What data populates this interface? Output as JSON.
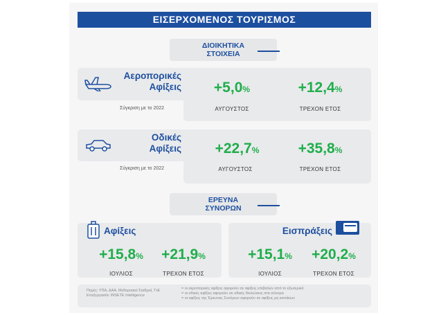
{
  "header": {
    "title": "ΕΙΣΕΡΧΟΜΕΝΟΣ ΤΟΥΡΙΣΜΟΣ"
  },
  "section1": {
    "label_line1": "ΔΙΟΙΚΗΤΙΚΑ",
    "label_line2": "ΣΤΟΙΧΕΙΑ",
    "rows": [
      {
        "title_line1": "Αεροπορικές",
        "title_line2": "Αφίξεις",
        "comparison": "Σύγκριση με το 2022",
        "stats": [
          {
            "value": "+5,0",
            "unit": "%",
            "label": "ΑΥΓΟΥΣΤΟΣ"
          },
          {
            "value": "+12,4",
            "unit": "%",
            "label": "ΤΡΕΧΟΝ ΕΤΟΣ"
          }
        ]
      },
      {
        "title_line1": "Οδικές",
        "title_line2": "Αφίξεις",
        "comparison": "Σύγκριση με το 2022",
        "stats": [
          {
            "value": "+22,7",
            "unit": "%",
            "label": "ΑΥΓΟΥΣΤΟΣ"
          },
          {
            "value": "+35,8",
            "unit": "%",
            "label": "ΤΡΕΧΟΝ ΕΤΟΣ"
          }
        ]
      }
    ]
  },
  "section2": {
    "label_line1": "ΕΡΕΥΝΑ",
    "label_line2": "ΣΥΝΟΡΩΝ",
    "panels": [
      {
        "title": "Αφίξεις",
        "stats": [
          {
            "value": "+15,8",
            "unit": "%",
            "label": "ΙΟΥΛΙΟΣ"
          },
          {
            "value": "+21,9",
            "unit": "%",
            "label": "ΤΡΕΧΟΝ ΕΤΟΣ"
          }
        ]
      },
      {
        "title": "Εισπράξεις",
        "stats": [
          {
            "value": "+15,1",
            "unit": "%",
            "label": "ΙΟΥΛΙΟΣ"
          },
          {
            "value": "+20,2",
            "unit": "%",
            "label": "ΤΡΕΧΟΝ ΕΤΟΣ"
          }
        ]
      }
    ]
  },
  "footer": {
    "sources": "Πηγές: ΥΠΑ, ΔΑΑ, Μεθοριακοί Σταθμοί, ΤτΕ",
    "processing": "Επεξεργασία: INSETE Intelligence",
    "notes": [
      "= οι αεροπορικές αφίξεις αφορούν σε αφίξεις επιβατών από το εξωτερικό",
      "= οι οδικές αφίξεις αφορούν σε οδικές διελεύσεις στα σύνορα",
      "= οι αφίξεις της Έρευνας Συνόρων αφορούν σε αφίξεις μη κατοίκων"
    ]
  }
}
